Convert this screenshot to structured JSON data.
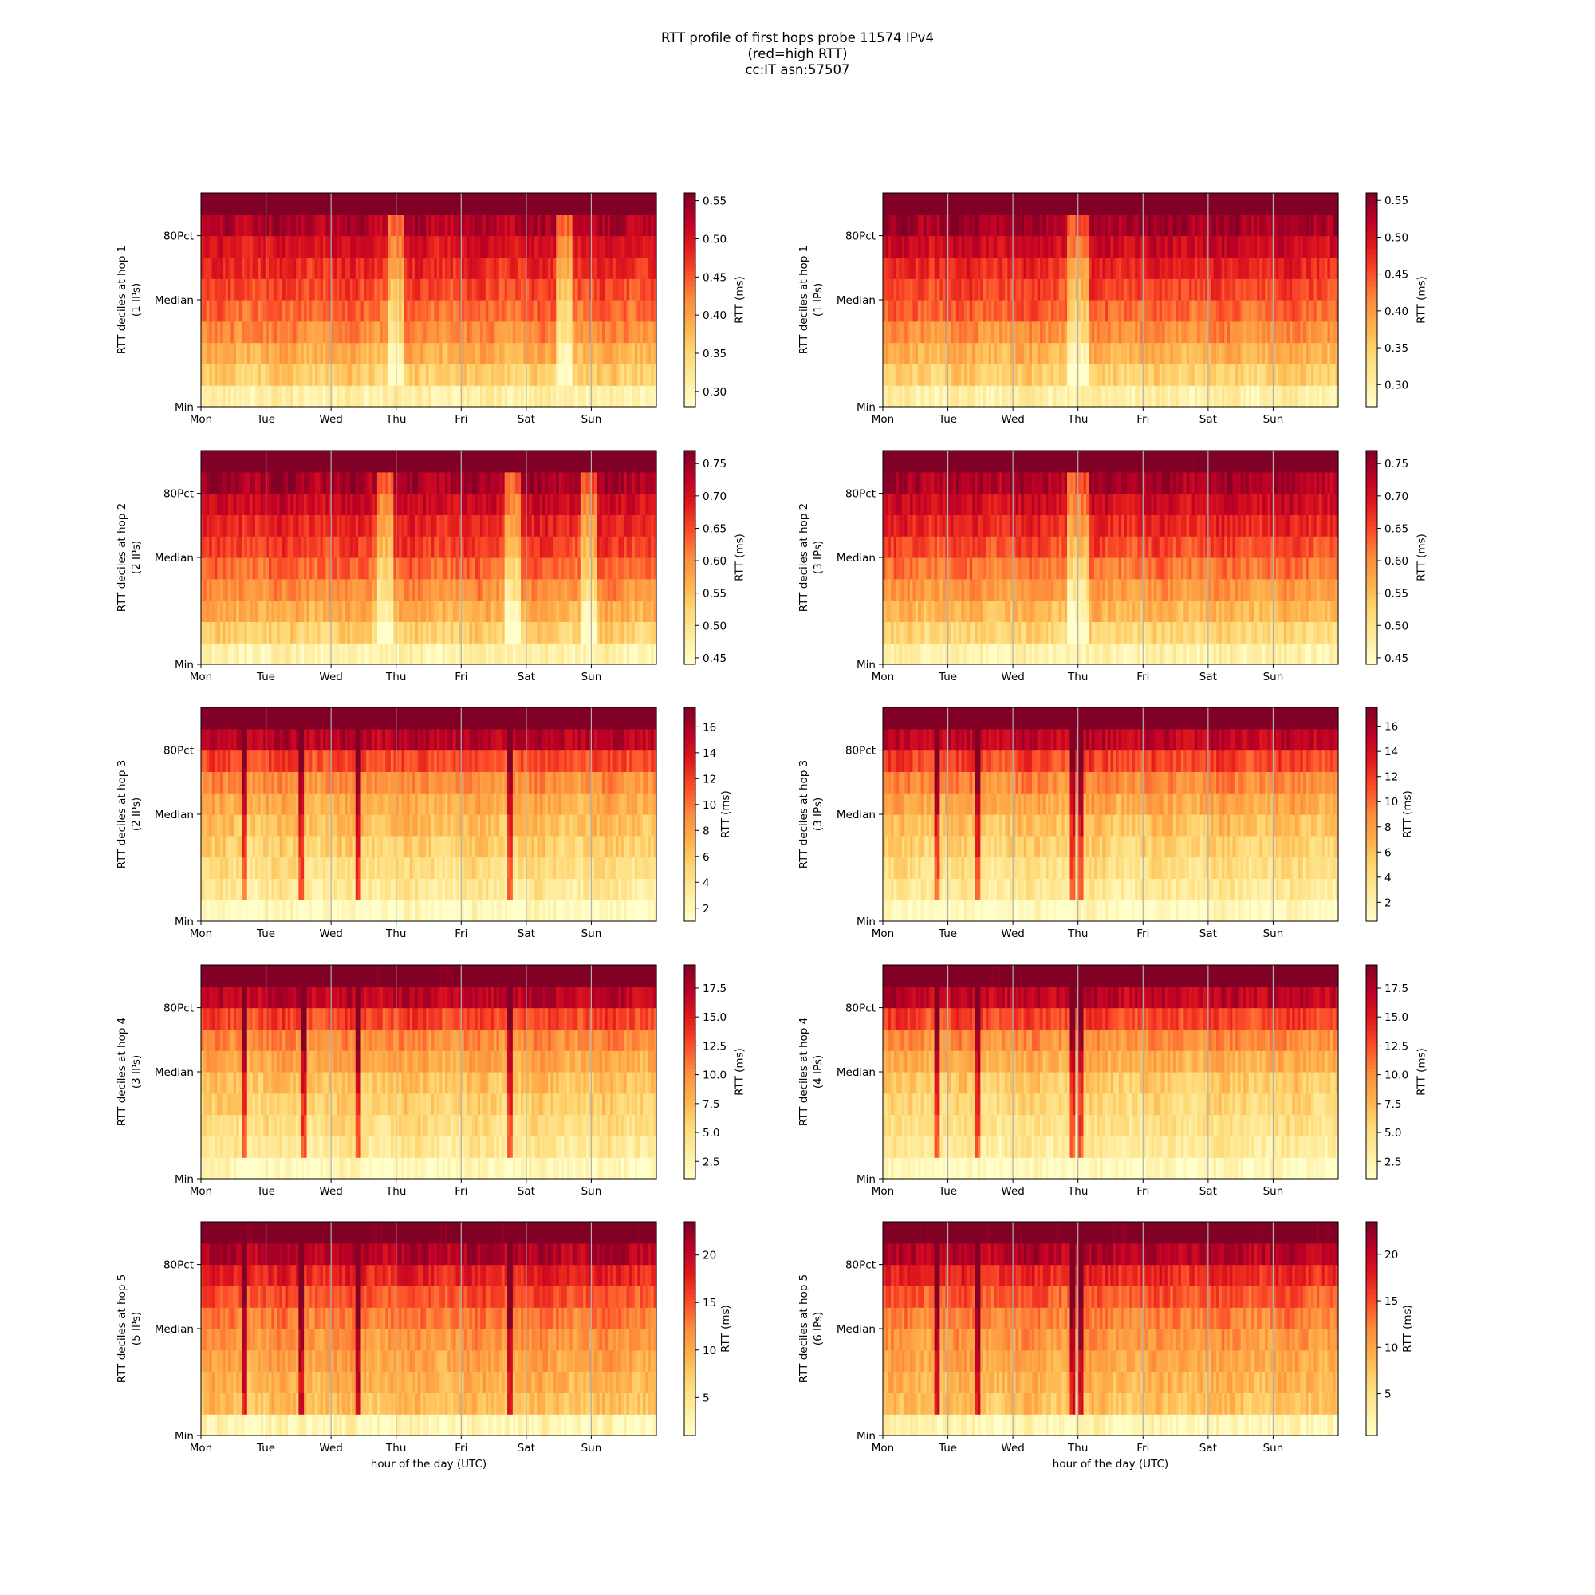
{
  "title": {
    "line1": "RTT profile of first hops probe 11574 IPv4",
    "line2": "(red=high RTT)",
    "line3": "cc:IT asn:57507"
  },
  "colormap": [
    "#ffffcc",
    "#ffeda0",
    "#fed976",
    "#feb24c",
    "#fd8d3c",
    "#fc4e2a",
    "#e31a1c",
    "#bd0026",
    "#800026"
  ],
  "chart_data": [
    {
      "type": "heatmap",
      "ylabel": "RTT deciles at hop 1",
      "ips_label": "(1 IPs)",
      "colorbar_label": "RTT (ms)",
      "colorbar_range": [
        0.28,
        0.56
      ],
      "colorbar_ticks": [
        "0.30",
        "0.35",
        "0.40",
        "0.45",
        "0.50",
        "0.55"
      ],
      "ytick_labels": [
        "Min",
        "Median",
        "80Pct"
      ],
      "xtick_labels": [
        "Mon",
        "Tue",
        "Wed",
        "Thu",
        "Fri",
        "Sat",
        "Sun"
      ],
      "xlabel": "",
      "decile_values": [
        0.31,
        0.36,
        0.39,
        0.42,
        0.44,
        0.46,
        0.48,
        0.5,
        0.53,
        0.6
      ],
      "dip_days": [
        3.0,
        5.6
      ],
      "dip_width": 0.25
    },
    {
      "type": "heatmap",
      "ylabel": "RTT deciles at hop 1",
      "ips_label": "(1 IPs)",
      "colorbar_label": "RTT (ms)",
      "colorbar_range": [
        0.27,
        0.56
      ],
      "colorbar_ticks": [
        "0.30",
        "0.35",
        "0.40",
        "0.45",
        "0.50",
        "0.55"
      ],
      "ytick_labels": [
        "Min",
        "Median",
        "80Pct"
      ],
      "xtick_labels": [
        "Mon",
        "Tue",
        "Wed",
        "Thu",
        "Fri",
        "Sat",
        "Sun"
      ],
      "xlabel": "",
      "decile_values": [
        0.3,
        0.35,
        0.38,
        0.41,
        0.44,
        0.46,
        0.48,
        0.51,
        0.54,
        0.6
      ],
      "dip_days": [
        3.0
      ],
      "dip_width": 0.3
    },
    {
      "type": "heatmap",
      "ylabel": "RTT deciles at hop 2",
      "ips_label": "(2 IPs)",
      "colorbar_label": "RTT (ms)",
      "colorbar_range": [
        0.44,
        0.77
      ],
      "colorbar_ticks": [
        "0.45",
        "0.50",
        "0.55",
        "0.60",
        "0.65",
        "0.70",
        "0.75"
      ],
      "ytick_labels": [
        "Min",
        "Median",
        "80Pct"
      ],
      "xtick_labels": [
        "Mon",
        "Tue",
        "Wed",
        "Thu",
        "Fri",
        "Sat",
        "Sun"
      ],
      "xlabel": "",
      "decile_values": [
        0.47,
        0.53,
        0.57,
        0.6,
        0.63,
        0.66,
        0.68,
        0.71,
        0.74,
        0.8
      ],
      "dip_days": [
        2.85,
        4.8,
        5.95
      ],
      "dip_width": 0.25
    },
    {
      "type": "heatmap",
      "ylabel": "RTT deciles at hop 2",
      "ips_label": "(3 IPs)",
      "colorbar_label": "RTT (ms)",
      "colorbar_range": [
        0.44,
        0.77
      ],
      "colorbar_ticks": [
        "0.45",
        "0.50",
        "0.55",
        "0.60",
        "0.65",
        "0.70",
        "0.75"
      ],
      "ytick_labels": [
        "Min",
        "Median",
        "80Pct"
      ],
      "xtick_labels": [
        "Mon",
        "Tue",
        "Wed",
        "Thu",
        "Fri",
        "Sat",
        "Sun"
      ],
      "xlabel": "",
      "decile_values": [
        0.47,
        0.52,
        0.56,
        0.59,
        0.62,
        0.65,
        0.68,
        0.71,
        0.74,
        0.8
      ],
      "dip_days": [
        3.0
      ],
      "dip_width": 0.3
    },
    {
      "type": "heatmap",
      "ylabel": "RTT deciles at hop 3",
      "ips_label": "(2 IPs)",
      "colorbar_label": "RTT (ms)",
      "colorbar_range": [
        1.0,
        17.5
      ],
      "colorbar_ticks": [
        "2",
        "4",
        "6",
        "8",
        "10",
        "12",
        "14",
        "16"
      ],
      "ytick_labels": [
        "Min",
        "Median",
        "80Pct"
      ],
      "xtick_labels": [
        "Mon",
        "Tue",
        "Wed",
        "Thu",
        "Fri",
        "Sat",
        "Sun"
      ],
      "xlabel": "",
      "decile_values": [
        1.5,
        3.5,
        4.5,
        5.5,
        6.5,
        7.5,
        9.0,
        11.5,
        15.5,
        19.0
      ],
      "spike_days": [
        0.65,
        1.55,
        2.4,
        4.75
      ],
      "spike_width": 0.08
    },
    {
      "type": "heatmap",
      "ylabel": "RTT deciles at hop 3",
      "ips_label": "(3 IPs)",
      "colorbar_label": "RTT (ms)",
      "colorbar_range": [
        0.5,
        17.5
      ],
      "colorbar_ticks": [
        "2",
        "4",
        "6",
        "8",
        "10",
        "12",
        "14",
        "16"
      ],
      "ytick_labels": [
        "Min",
        "Median",
        "80Pct"
      ],
      "xtick_labels": [
        "Mon",
        "Tue",
        "Wed",
        "Thu",
        "Fri",
        "Sat",
        "Sun"
      ],
      "xlabel": "",
      "decile_values": [
        1.0,
        3.0,
        4.0,
        5.0,
        6.0,
        7.5,
        9.0,
        11.5,
        15.0,
        19.0
      ],
      "spike_days": [
        0.85,
        1.45,
        2.9,
        3.05
      ],
      "spike_width": 0.08
    },
    {
      "type": "heatmap",
      "ylabel": "RTT deciles at hop 4",
      "ips_label": "(3 IPs)",
      "colorbar_label": "RTT (ms)",
      "colorbar_range": [
        1.0,
        19.5
      ],
      "colorbar_ticks": [
        "2.5",
        "5.0",
        "7.5",
        "10.0",
        "12.5",
        "15.0",
        "17.5"
      ],
      "ytick_labels": [
        "Min",
        "Median",
        "80Pct"
      ],
      "xtick_labels": [
        "Mon",
        "Tue",
        "Wed",
        "Thu",
        "Fri",
        "Sat",
        "Sun"
      ],
      "xlabel": "",
      "decile_values": [
        1.8,
        4.0,
        5.0,
        6.0,
        7.0,
        8.5,
        10.0,
        13.0,
        17.0,
        21.0
      ],
      "spike_days": [
        0.65,
        1.6,
        2.4,
        4.75
      ],
      "spike_width": 0.08
    },
    {
      "type": "heatmap",
      "ylabel": "RTT deciles at hop 4",
      "ips_label": "(4 IPs)",
      "colorbar_label": "RTT (ms)",
      "colorbar_range": [
        1.0,
        19.5
      ],
      "colorbar_ticks": [
        "2.5",
        "5.0",
        "7.5",
        "10.0",
        "12.5",
        "15.0",
        "17.5"
      ],
      "ytick_labels": [
        "Min",
        "Median",
        "80Pct"
      ],
      "xtick_labels": [
        "Mon",
        "Tue",
        "Wed",
        "Thu",
        "Fri",
        "Sat",
        "Sun"
      ],
      "xlabel": "",
      "decile_values": [
        1.5,
        3.5,
        4.5,
        5.5,
        6.5,
        8.0,
        10.0,
        13.0,
        17.0,
        21.0
      ],
      "spike_days": [
        0.85,
        1.45,
        2.9,
        3.05
      ],
      "spike_width": 0.08
    },
    {
      "type": "heatmap",
      "ylabel": "RTT deciles at hop 5",
      "ips_label": "(5 IPs)",
      "colorbar_label": "RTT (ms)",
      "colorbar_range": [
        1.0,
        23.5
      ],
      "colorbar_ticks": [
        "5",
        "10",
        "15",
        "20"
      ],
      "ytick_labels": [
        "Min",
        "Median",
        "80Pct"
      ],
      "xtick_labels": [
        "Mon",
        "Tue",
        "Wed",
        "Thu",
        "Fri",
        "Sat",
        "Sun"
      ],
      "xlabel": "hour of the day (UTC)",
      "decile_values": [
        2.5,
        8.5,
        9.5,
        10.5,
        11.5,
        13.0,
        15.0,
        17.5,
        21.0,
        25.0
      ],
      "spike_days": [
        0.65,
        1.55,
        2.4,
        4.75
      ],
      "spike_width": 0.08
    },
    {
      "type": "heatmap",
      "ylabel": "RTT deciles at hop 5",
      "ips_label": "(6 IPs)",
      "colorbar_label": "RTT (ms)",
      "colorbar_range": [
        0.5,
        23.5
      ],
      "colorbar_ticks": [
        "5",
        "10",
        "15",
        "20"
      ],
      "ytick_labels": [
        "Min",
        "Median",
        "80Pct"
      ],
      "xtick_labels": [
        "Mon",
        "Tue",
        "Wed",
        "Thu",
        "Fri",
        "Sat",
        "Sun"
      ],
      "xlabel": "hour of the day (UTC)",
      "decile_values": [
        2.0,
        8.0,
        9.0,
        10.0,
        11.0,
        12.5,
        14.5,
        17.0,
        21.0,
        25.0
      ],
      "spike_days": [
        0.85,
        1.45,
        2.9,
        3.05
      ],
      "spike_width": 0.08
    }
  ]
}
